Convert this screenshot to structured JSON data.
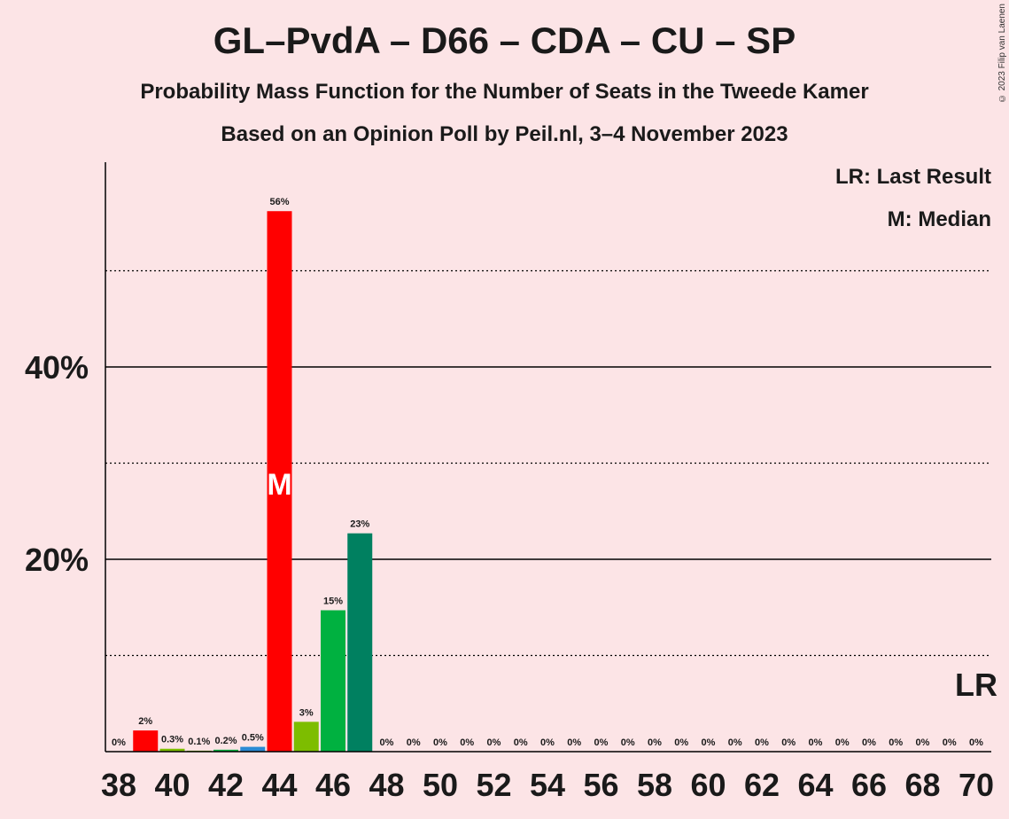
{
  "chart_data": {
    "type": "bar",
    "title": "GL–PvdA – D66 – CDA – CU – SP",
    "subtitle": "Probability Mass Function for the Number of Seats in the Tweede Kamer",
    "subtitle2": "Based on an Opinion Poll by Peil.nl, 3–4 November 2023",
    "copyright": "© 2023 Filip van Laenen",
    "legend": {
      "last_result": "LR: Last Result",
      "median": "M: Median",
      "placement": "top-right"
    },
    "y_ticks": [
      {
        "value": 20,
        "label": "20%"
      },
      {
        "value": 40,
        "label": "40%"
      }
    ],
    "y_dotted": [
      10,
      30,
      50
    ],
    "ylim": [
      0,
      61.5
    ],
    "x_ticks": [
      38,
      40,
      42,
      44,
      46,
      48,
      50,
      52,
      54,
      56,
      58,
      60,
      62,
      64,
      66,
      68,
      70
    ],
    "xlim": [
      37.5,
      70.5
    ],
    "median_seat": 44,
    "median_marker": "M",
    "last_result_seat": 70,
    "last_result_marker": "LR",
    "bars": [
      {
        "seat": 38,
        "value": 0,
        "label": "0%",
        "color": "#00b140"
      },
      {
        "seat": 39,
        "value": 2.2,
        "label": "2%",
        "color": "#ff0000"
      },
      {
        "seat": 40,
        "value": 0.3,
        "label": "0.3%",
        "color": "#7dbd00"
      },
      {
        "seat": 41,
        "value": 0.1,
        "label": "0.1%",
        "color": "#7dbd00"
      },
      {
        "seat": 42,
        "value": 0.2,
        "label": "0.2%",
        "color": "#00b140"
      },
      {
        "seat": 43,
        "value": 0.5,
        "label": "0.5%",
        "color": "#2a8ad4"
      },
      {
        "seat": 44,
        "value": 56.2,
        "label": "56%",
        "color": "#ff0000"
      },
      {
        "seat": 45,
        "value": 3.1,
        "label": "3%",
        "color": "#7dbd00"
      },
      {
        "seat": 46,
        "value": 14.7,
        "label": "15%",
        "color": "#00b140"
      },
      {
        "seat": 47,
        "value": 22.7,
        "label": "23%",
        "color": "#008060"
      },
      {
        "seat": 48,
        "value": 0,
        "label": "0%",
        "color": "#00b140"
      },
      {
        "seat": 49,
        "value": 0,
        "label": "0%",
        "color": "#00b140"
      },
      {
        "seat": 50,
        "value": 0,
        "label": "0%",
        "color": "#00b140"
      },
      {
        "seat": 51,
        "value": 0,
        "label": "0%",
        "color": "#00b140"
      },
      {
        "seat": 52,
        "value": 0,
        "label": "0%",
        "color": "#00b140"
      },
      {
        "seat": 53,
        "value": 0,
        "label": "0%",
        "color": "#00b140"
      },
      {
        "seat": 54,
        "value": 0,
        "label": "0%",
        "color": "#00b140"
      },
      {
        "seat": 55,
        "value": 0,
        "label": "0%",
        "color": "#00b140"
      },
      {
        "seat": 56,
        "value": 0,
        "label": "0%",
        "color": "#00b140"
      },
      {
        "seat": 57,
        "value": 0,
        "label": "0%",
        "color": "#00b140"
      },
      {
        "seat": 58,
        "value": 0,
        "label": "0%",
        "color": "#00b140"
      },
      {
        "seat": 59,
        "value": 0,
        "label": "0%",
        "color": "#00b140"
      },
      {
        "seat": 60,
        "value": 0,
        "label": "0%",
        "color": "#00b140"
      },
      {
        "seat": 61,
        "value": 0,
        "label": "0%",
        "color": "#00b140"
      },
      {
        "seat": 62,
        "value": 0,
        "label": "0%",
        "color": "#00b140"
      },
      {
        "seat": 63,
        "value": 0,
        "label": "0%",
        "color": "#00b140"
      },
      {
        "seat": 64,
        "value": 0,
        "label": "0%",
        "color": "#00b140"
      },
      {
        "seat": 65,
        "value": 0,
        "label": "0%",
        "color": "#00b140"
      },
      {
        "seat": 66,
        "value": 0,
        "label": "0%",
        "color": "#00b140"
      },
      {
        "seat": 67,
        "value": 0,
        "label": "0%",
        "color": "#00b140"
      },
      {
        "seat": 68,
        "value": 0,
        "label": "0%",
        "color": "#00b140"
      },
      {
        "seat": 69,
        "value": 0,
        "label": "0%",
        "color": "#00b140"
      },
      {
        "seat": 70,
        "value": 0,
        "label": "0%",
        "color": "#00b140"
      }
    ]
  }
}
